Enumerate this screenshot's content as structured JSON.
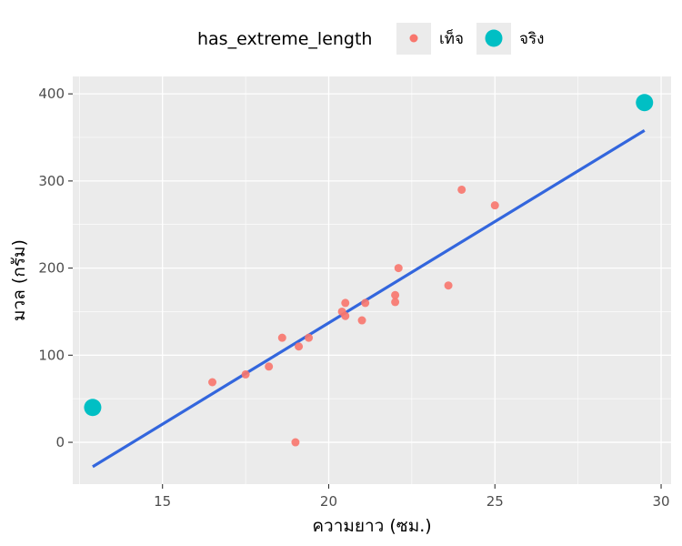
{
  "chart_data": {
    "type": "scatter",
    "title": "",
    "xlabel": "ความยาว (ซม.)",
    "ylabel": "มวล (กรัม)",
    "xlim": [
      12.3,
      30.3
    ],
    "ylim": [
      -48,
      420
    ],
    "x_ticks": [
      15,
      20,
      25,
      30
    ],
    "y_ticks": [
      0,
      100,
      200,
      300,
      400
    ],
    "x_tick_labels": [
      "15",
      "20",
      "25",
      "30"
    ],
    "y_tick_labels": [
      "0",
      "100",
      "200",
      "300",
      "400"
    ],
    "grid": true,
    "legend": {
      "title": "has_extreme_length",
      "position": "top",
      "entries": [
        {
          "label": "เท็จ",
          "color": "#F8766D"
        },
        {
          "label": "จริง",
          "color": "#00BFC4"
        }
      ]
    },
    "series": [
      {
        "name": "เท็จ",
        "color": "#F8766D",
        "points": [
          {
            "x": 16.5,
            "y": 69
          },
          {
            "x": 17.5,
            "y": 78
          },
          {
            "x": 18.2,
            "y": 87
          },
          {
            "x": 18.6,
            "y": 120
          },
          {
            "x": 19.0,
            "y": 0
          },
          {
            "x": 19.1,
            "y": 110
          },
          {
            "x": 19.4,
            "y": 120
          },
          {
            "x": 20.4,
            "y": 150
          },
          {
            "x": 20.5,
            "y": 145
          },
          {
            "x": 20.5,
            "y": 160
          },
          {
            "x": 21.0,
            "y": 140
          },
          {
            "x": 21.1,
            "y": 160
          },
          {
            "x": 22.0,
            "y": 169
          },
          {
            "x": 22.0,
            "y": 161
          },
          {
            "x": 22.1,
            "y": 200
          },
          {
            "x": 23.6,
            "y": 180
          },
          {
            "x": 24.0,
            "y": 290
          },
          {
            "x": 25.0,
            "y": 272
          }
        ]
      },
      {
        "name": "จริง",
        "color": "#00BFC4",
        "points": [
          {
            "x": 12.9,
            "y": 40
          },
          {
            "x": 29.5,
            "y": 390
          }
        ]
      }
    ],
    "fit_line": {
      "color": "#3366DD",
      "x": [
        12.9,
        29.5
      ],
      "y": [
        -28,
        358
      ]
    }
  }
}
